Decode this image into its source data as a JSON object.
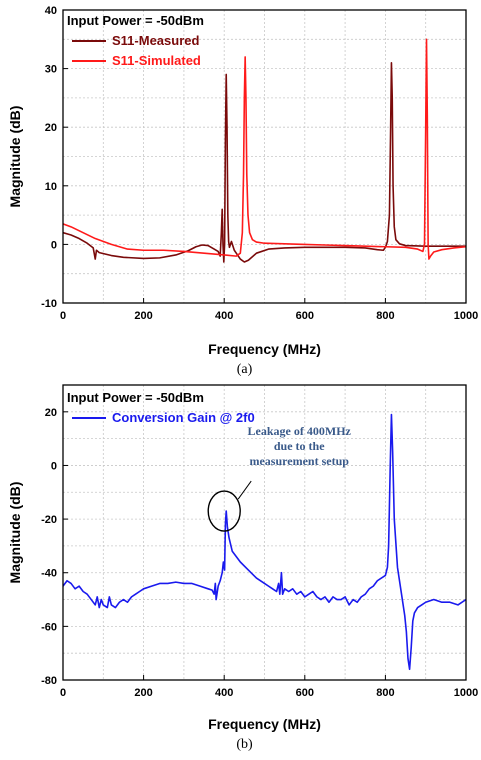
{
  "chart_data": [
    {
      "type": "line",
      "panel_label": "(a)",
      "xlabel": "Frequency (MHz)",
      "ylabel": "Magnitude (dB)",
      "xlim": [
        0,
        1000
      ],
      "ylim": [
        -10,
        40
      ],
      "xticks": [
        0,
        200,
        400,
        600,
        800,
        1000
      ],
      "yticks": [
        -10,
        0,
        10,
        20,
        30,
        40
      ],
      "legend_title": "Input Power = -50dBm",
      "legend_position": "top-left",
      "grid": true,
      "series": [
        {
          "name": "S11-Measured",
          "color": "#7a0a0a",
          "points": [
            [
              0,
              2.0
            ],
            [
              20,
              1.6
            ],
            [
              40,
              1.0
            ],
            [
              60,
              0.2
            ],
            [
              75,
              -0.6
            ],
            [
              80,
              -2.5
            ],
            [
              83,
              -1.0
            ],
            [
              90,
              -1.4
            ],
            [
              120,
              -1.9
            ],
            [
              150,
              -2.2
            ],
            [
              200,
              -2.4
            ],
            [
              240,
              -2.3
            ],
            [
              280,
              -1.8
            ],
            [
              310,
              -1.1
            ],
            [
              330,
              -0.4
            ],
            [
              345,
              -0.1
            ],
            [
              360,
              -0.2
            ],
            [
              375,
              -0.8
            ],
            [
              385,
              -1.2
            ],
            [
              390,
              -2.0
            ],
            [
              393,
              2.0
            ],
            [
              395,
              6.0
            ],
            [
              397,
              0.0
            ],
            [
              399,
              -3.0
            ],
            [
              401,
              0.0
            ],
            [
              403,
              18.0
            ],
            [
              405,
              29.0
            ],
            [
              407,
              20.0
            ],
            [
              409,
              5.0
            ],
            [
              411,
              0.5
            ],
            [
              413,
              -0.5
            ],
            [
              418,
              0.5
            ],
            [
              425,
              -1.0
            ],
            [
              430,
              -1.5
            ],
            [
              440,
              -2.5
            ],
            [
              450,
              -3.0
            ],
            [
              460,
              -2.7
            ],
            [
              480,
              -1.5
            ],
            [
              510,
              -0.8
            ],
            [
              550,
              -0.6
            ],
            [
              600,
              -0.5
            ],
            [
              650,
              -0.5
            ],
            [
              700,
              -0.5
            ],
            [
              750,
              -0.6
            ],
            [
              780,
              -0.9
            ],
            [
              795,
              -1.0
            ],
            [
              800,
              -0.5
            ],
            [
              805,
              0.5
            ],
            [
              810,
              5.0
            ],
            [
              813,
              20.0
            ],
            [
              815,
              31.0
            ],
            [
              817,
              25.0
            ],
            [
              819,
              10.0
            ],
            [
              822,
              3.0
            ],
            [
              826,
              0.8
            ],
            [
              835,
              0.1
            ],
            [
              850,
              -0.2
            ],
            [
              900,
              -0.3
            ],
            [
              950,
              -0.3
            ],
            [
              1000,
              -0.3
            ]
          ]
        },
        {
          "name": "S11-Simulated",
          "color": "#ff1a1a",
          "points": [
            [
              0,
              3.5
            ],
            [
              20,
              3.0
            ],
            [
              50,
              2.0
            ],
            [
              80,
              1.0
            ],
            [
              120,
              0.0
            ],
            [
              160,
              -0.8
            ],
            [
              200,
              -1.0
            ],
            [
              250,
              -1.0
            ],
            [
              300,
              -1.2
            ],
            [
              350,
              -1.5
            ],
            [
              400,
              -1.8
            ],
            [
              430,
              -2.0
            ],
            [
              440,
              -1.5
            ],
            [
              445,
              2.0
            ],
            [
              448,
              12.0
            ],
            [
              450,
              25.0
            ],
            [
              452,
              32.0
            ],
            [
              454,
              25.0
            ],
            [
              456,
              12.0
            ],
            [
              459,
              5.0
            ],
            [
              463,
              2.0
            ],
            [
              470,
              0.8
            ],
            [
              480,
              0.4
            ],
            [
              500,
              0.2
            ],
            [
              550,
              0.1
            ],
            [
              600,
              0.0
            ],
            [
              650,
              -0.1
            ],
            [
              700,
              -0.2
            ],
            [
              750,
              -0.3
            ],
            [
              800,
              -0.4
            ],
            [
              850,
              -0.5
            ],
            [
              880,
              -0.8
            ],
            [
              893,
              -1.2
            ],
            [
              897,
              0.0
            ],
            [
              900,
              20.0
            ],
            [
              902,
              35.0
            ],
            [
              904,
              22.0
            ],
            [
              906,
              0.0
            ],
            [
              908,
              -2.5
            ],
            [
              912,
              -2.0
            ],
            [
              920,
              -1.3
            ],
            [
              940,
              -0.9
            ],
            [
              970,
              -0.6
            ],
            [
              1000,
              -0.4
            ]
          ]
        }
      ]
    },
    {
      "type": "line",
      "panel_label": "(b)",
      "xlabel": "Frequency (MHz)",
      "ylabel": "Magnitude (dB)",
      "xlim": [
        0,
        1000
      ],
      "ylim": [
        -80,
        30
      ],
      "xticks": [
        0,
        200,
        400,
        600,
        800,
        1000
      ],
      "yticks": [
        -80,
        -60,
        -40,
        -20,
        0,
        20
      ],
      "legend_title": "Input Power = -50dBm",
      "legend_position": "top-left",
      "grid": true,
      "annotation": {
        "lines": [
          "Leakage of 400MHz",
          "due to the",
          "measurement setup"
        ],
        "color": "#3a5a8a",
        "target": [
          405,
          -17
        ]
      },
      "series": [
        {
          "name": "Conversion Gain @ 2f0",
          "color": "#1a1aee",
          "points": [
            [
              0,
              -45
            ],
            [
              10,
              -43
            ],
            [
              20,
              -44
            ],
            [
              30,
              -46
            ],
            [
              40,
              -45
            ],
            [
              50,
              -47
            ],
            [
              60,
              -48
            ],
            [
              70,
              -50
            ],
            [
              80,
              -52
            ],
            [
              85,
              -49
            ],
            [
              90,
              -53
            ],
            [
              95,
              -50
            ],
            [
              100,
              -52
            ],
            [
              110,
              -53
            ],
            [
              115,
              -49
            ],
            [
              120,
              -52
            ],
            [
              130,
              -53
            ],
            [
              140,
              -51
            ],
            [
              150,
              -50
            ],
            [
              160,
              -51
            ],
            [
              170,
              -49
            ],
            [
              180,
              -48
            ],
            [
              190,
              -47
            ],
            [
              200,
              -46
            ],
            [
              220,
              -45
            ],
            [
              240,
              -44
            ],
            [
              260,
              -44
            ],
            [
              280,
              -43.5
            ],
            [
              300,
              -44
            ],
            [
              320,
              -44
            ],
            [
              340,
              -45
            ],
            [
              360,
              -46
            ],
            [
              370,
              -46.5
            ],
            [
              375,
              -48
            ],
            [
              378,
              -44
            ],
            [
              380,
              -50
            ],
            [
              385,
              -45
            ],
            [
              390,
              -43
            ],
            [
              395,
              -40
            ],
            [
              398,
              -36
            ],
            [
              401,
              -39
            ],
            [
              403,
              -22
            ],
            [
              405,
              -17
            ],
            [
              408,
              -23
            ],
            [
              412,
              -27
            ],
            [
              420,
              -32
            ],
            [
              440,
              -36
            ],
            [
              460,
              -39
            ],
            [
              480,
              -42
            ],
            [
              500,
              -44
            ],
            [
              510,
              -45
            ],
            [
              520,
              -46
            ],
            [
              530,
              -47
            ],
            [
              535,
              -44
            ],
            [
              538,
              -48
            ],
            [
              542,
              -40
            ],
            [
              545,
              -48
            ],
            [
              550,
              -46
            ],
            [
              560,
              -47
            ],
            [
              570,
              -46
            ],
            [
              580,
              -48
            ],
            [
              590,
              -47
            ],
            [
              600,
              -49
            ],
            [
              610,
              -48
            ],
            [
              620,
              -47
            ],
            [
              630,
              -49
            ],
            [
              640,
              -50
            ],
            [
              650,
              -49
            ],
            [
              660,
              -51
            ],
            [
              670,
              -49
            ],
            [
              680,
              -50
            ],
            [
              690,
              -50
            ],
            [
              700,
              -49
            ],
            [
              710,
              -52
            ],
            [
              720,
              -50
            ],
            [
              730,
              -51
            ],
            [
              740,
              -49
            ],
            [
              750,
              -48
            ],
            [
              760,
              -46
            ],
            [
              770,
              -45
            ],
            [
              780,
              -43
            ],
            [
              790,
              -42
            ],
            [
              800,
              -41
            ],
            [
              805,
              -38
            ],
            [
              808,
              -30
            ],
            [
              812,
              0
            ],
            [
              815,
              19
            ],
            [
              818,
              5
            ],
            [
              822,
              -20
            ],
            [
              830,
              -38
            ],
            [
              840,
              -48
            ],
            [
              848,
              -56
            ],
            [
              852,
              -62
            ],
            [
              856,
              -72
            ],
            [
              860,
              -76
            ],
            [
              864,
              -68
            ],
            [
              868,
              -58
            ],
            [
              872,
              -55
            ],
            [
              880,
              -53
            ],
            [
              890,
              -52
            ],
            [
              900,
              -51
            ],
            [
              920,
              -50
            ],
            [
              940,
              -51
            ],
            [
              960,
              -51
            ],
            [
              980,
              -52
            ],
            [
              1000,
              -50
            ]
          ]
        }
      ]
    }
  ]
}
